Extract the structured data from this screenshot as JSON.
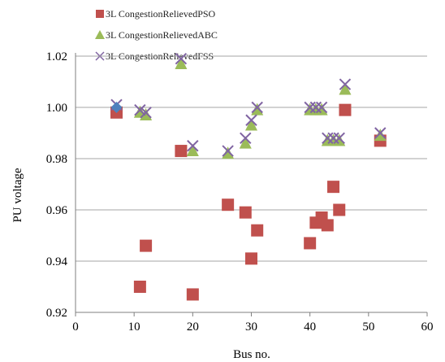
{
  "chart_data": {
    "type": "scatter",
    "xlabel": "Bus no.",
    "ylabel": "PU voltage",
    "xlim": [
      0,
      60
    ],
    "ylim": [
      0.92,
      1.02
    ],
    "x_ticks": [
      "0",
      "10",
      "20",
      "30",
      "40",
      "50",
      "60"
    ],
    "y_ticks": [
      "0.92",
      "0.94",
      "0.96",
      "0.98",
      "1.00",
      "1.02"
    ],
    "grid": "horizontal",
    "legend_position": "top-left",
    "series": [
      {
        "name": "3L CongestionRelievedPSO",
        "marker": "square",
        "color": "#C0504D",
        "points": [
          [
            7,
            0.998
          ],
          [
            11,
            0.93
          ],
          [
            12,
            0.946
          ],
          [
            18,
            0.983
          ],
          [
            20,
            0.927
          ],
          [
            26,
            0.962
          ],
          [
            29,
            0.959
          ],
          [
            30,
            0.941
          ],
          [
            31,
            0.952
          ],
          [
            40,
            0.947
          ],
          [
            41,
            0.955
          ],
          [
            42,
            0.957
          ],
          [
            43,
            0.954
          ],
          [
            44,
            0.969
          ],
          [
            45,
            0.96
          ],
          [
            46,
            0.999
          ],
          [
            52,
            0.987
          ]
        ]
      },
      {
        "name": "3L CongestionRelievedABC",
        "marker": "triangle",
        "color": "#9BBB59",
        "points": [
          [
            11,
            0.998
          ],
          [
            12,
            0.997
          ],
          [
            18,
            1.017
          ],
          [
            20,
            0.983
          ],
          [
            26,
            0.982
          ],
          [
            29,
            0.986
          ],
          [
            30,
            0.993
          ],
          [
            31,
            0.999
          ],
          [
            40,
            0.999
          ],
          [
            41,
            0.999
          ],
          [
            42,
            0.999
          ],
          [
            43,
            0.987
          ],
          [
            44,
            0.987
          ],
          [
            45,
            0.987
          ],
          [
            46,
            1.007
          ],
          [
            52,
            0.989
          ]
        ]
      },
      {
        "name": "3L CongestionRelievedFSS",
        "marker": "x",
        "color": "#8064A2",
        "points": [
          [
            7,
            1.001
          ],
          [
            11,
            0.999
          ],
          [
            12,
            0.998
          ],
          [
            18,
            1.019
          ],
          [
            20,
            0.985
          ],
          [
            26,
            0.983
          ],
          [
            29,
            0.988
          ],
          [
            30,
            0.995
          ],
          [
            31,
            1.0
          ],
          [
            40,
            1.0
          ],
          [
            41,
            1.0
          ],
          [
            42,
            1.0
          ],
          [
            43,
            0.988
          ],
          [
            44,
            0.988
          ],
          [
            45,
            0.988
          ],
          [
            46,
            1.009
          ],
          [
            52,
            0.99
          ]
        ]
      },
      {
        "name": "",
        "marker": "diamond",
        "color": "#4F81BD",
        "points": [
          [
            7,
            1.0
          ]
        ]
      }
    ]
  }
}
